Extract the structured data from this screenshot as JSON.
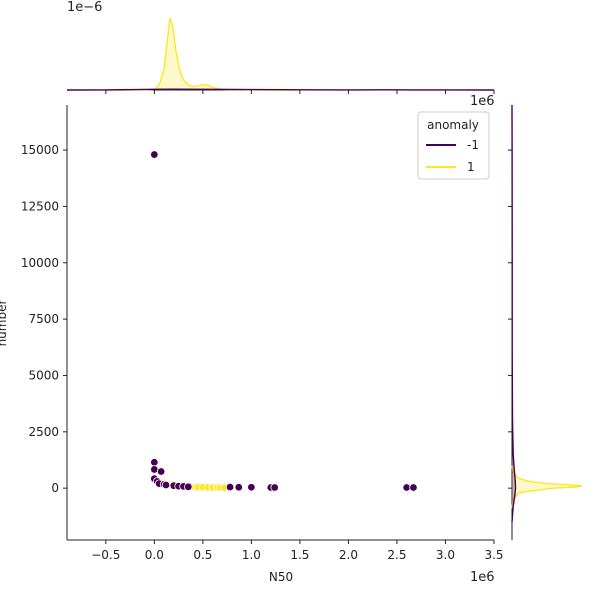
{
  "chart_data": {
    "type": "scatter",
    "xlabel": "N50",
    "ylabel": "number",
    "x_offset_label": "1e6",
    "y_offset_label_marg_x": "1e−6",
    "x_offset_label_marg_y": "1e6",
    "xlim": [
      -0.9,
      3.5
    ],
    "ylim": [
      -2300,
      17000
    ],
    "x_ticks": [
      -0.5,
      0.0,
      0.5,
      1.0,
      1.5,
      2.0,
      2.5,
      3.0,
      3.5
    ],
    "x_tick_labels": [
      "−0.5",
      "0.0",
      "0.5",
      "1.0",
      "1.5",
      "2.0",
      "2.5",
      "3.0",
      "3.5"
    ],
    "y_ticks": [
      0,
      2500,
      5000,
      7500,
      10000,
      12500,
      15000
    ],
    "y_tick_labels": [
      "0",
      "2500",
      "5000",
      "7500",
      "10000",
      "12500",
      "15000"
    ],
    "legend": {
      "title": "anomaly",
      "placement": "top-right",
      "entries": [
        {
          "label": "-1",
          "color": "#440154"
        },
        {
          "label": "1",
          "color": "#fde725"
        }
      ]
    },
    "series": [
      {
        "name": "-1",
        "color": "#440154",
        "points": [
          [
            0.0,
            14800
          ],
          [
            0.0,
            1150
          ],
          [
            0.0,
            830
          ],
          [
            0.07,
            740
          ],
          [
            0.0,
            420
          ],
          [
            0.03,
            300
          ],
          [
            0.05,
            200
          ],
          [
            0.1,
            170
          ],
          [
            0.12,
            140
          ],
          [
            0.2,
            110
          ],
          [
            0.25,
            90
          ],
          [
            0.3,
            80
          ],
          [
            0.35,
            60
          ],
          [
            0.78,
            50
          ],
          [
            0.87,
            40
          ],
          [
            1.0,
            40
          ],
          [
            1.2,
            30
          ],
          [
            1.24,
            30
          ],
          [
            2.6,
            30
          ],
          [
            2.67,
            30
          ]
        ]
      },
      {
        "name": "1",
        "color": "#fde725",
        "points": [
          [
            0.05,
            300
          ],
          [
            0.08,
            250
          ],
          [
            0.1,
            220
          ],
          [
            0.12,
            200
          ],
          [
            0.15,
            180
          ],
          [
            0.17,
            160
          ],
          [
            0.2,
            140
          ],
          [
            0.22,
            120
          ],
          [
            0.25,
            110
          ],
          [
            0.28,
            100
          ],
          [
            0.3,
            90
          ],
          [
            0.33,
            80
          ],
          [
            0.35,
            70
          ],
          [
            0.38,
            60
          ],
          [
            0.42,
            50
          ],
          [
            0.45,
            45
          ],
          [
            0.5,
            40
          ],
          [
            0.55,
            35
          ],
          [
            0.6,
            30
          ],
          [
            0.65,
            30
          ],
          [
            0.68,
            25
          ],
          [
            0.72,
            25
          ],
          [
            0.1,
            150
          ],
          [
            0.14,
            120
          ],
          [
            0.18,
            100
          ],
          [
            0.26,
            80
          ],
          [
            0.32,
            60
          ]
        ]
      }
    ],
    "marginal_x": {
      "series": [
        {
          "name": "1",
          "color": "#fde725",
          "fill": true,
          "x": [
            -0.5,
            -0.3,
            -0.1,
            0.0,
            0.05,
            0.1,
            0.13,
            0.16,
            0.19,
            0.22,
            0.26,
            0.3,
            0.35,
            0.4,
            0.45,
            0.5,
            0.55,
            0.62,
            0.7,
            0.8,
            1.0,
            1.5
          ],
          "density": [
            0.0,
            0.0,
            0.003,
            0.02,
            0.15,
            0.6,
            1.4,
            2.15,
            1.9,
            1.2,
            0.6,
            0.3,
            0.15,
            0.1,
            0.12,
            0.16,
            0.14,
            0.06,
            0.02,
            0.0,
            0.0,
            0.0
          ]
        },
        {
          "name": "-1",
          "color": "#440154",
          "fill": true,
          "x": [
            -0.9,
            -0.5,
            0.0,
            0.2,
            0.5,
            0.8,
            1.0,
            1.3,
            1.6,
            2.0,
            2.4,
            2.7,
            3.0,
            3.5
          ],
          "density": [
            0.0,
            0.004,
            0.02,
            0.025,
            0.02,
            0.015,
            0.012,
            0.008,
            0.005,
            0.004,
            0.005,
            0.004,
            0.002,
            0.0
          ]
        }
      ]
    },
    "marginal_y": {
      "series": [
        {
          "name": "1",
          "color": "#fde725",
          "fill": true,
          "y": [
            -900,
            -500,
            -200,
            0,
            50,
            100,
            150,
            200,
            300,
            450,
            700,
            1000
          ],
          "density": [
            0.0,
            0.01,
            0.06,
            0.35,
            0.55,
            0.6,
            0.5,
            0.3,
            0.15,
            0.05,
            0.01,
            0.0
          ]
        },
        {
          "name": "-1",
          "color": "#440154",
          "fill": true,
          "y": [
            -1500,
            -800,
            -300,
            0,
            300,
            800,
            1500,
            3000,
            6000,
            10000,
            15000,
            17000
          ],
          "density": [
            0.0,
            0.01,
            0.025,
            0.03,
            0.028,
            0.02,
            0.01,
            0.004,
            0.002,
            0.0015,
            0.001,
            0.0
          ]
        }
      ]
    }
  }
}
